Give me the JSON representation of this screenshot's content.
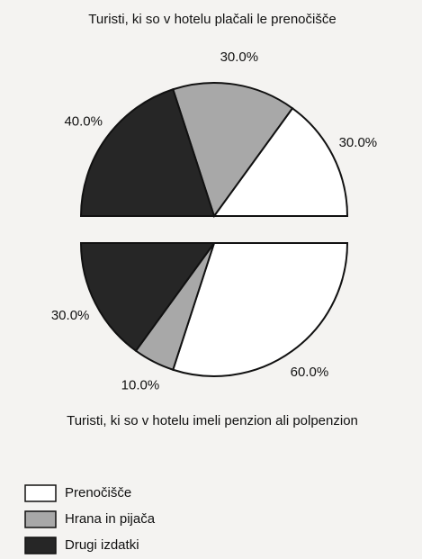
{
  "chart_data": [
    {
      "type": "pie",
      "half": "upper",
      "title": "Turisti, ki so v hotelu plačali le prenočišče",
      "categories": [
        "Prenočišče",
        "Hrana in pijača",
        "Drugi izdatki"
      ],
      "values": [
        30,
        30,
        40
      ],
      "value_labels": [
        "30.0%",
        "30.0%",
        "40.0%"
      ],
      "colors": [
        "#ffffff",
        "#a8a8a8",
        "#262626"
      ]
    },
    {
      "type": "pie",
      "half": "lower",
      "title": "Turisti, ki so v hotelu imeli penzion ali polpenzion",
      "categories": [
        "Prenočišče",
        "Hrana in pijača",
        "Drugi izdatki"
      ],
      "values": [
        60,
        10,
        30
      ],
      "value_labels": [
        "60.0%",
        "10.0%",
        "30.0%"
      ],
      "colors": [
        "#ffffff",
        "#a8a8a8",
        "#262626"
      ]
    }
  ]
}
